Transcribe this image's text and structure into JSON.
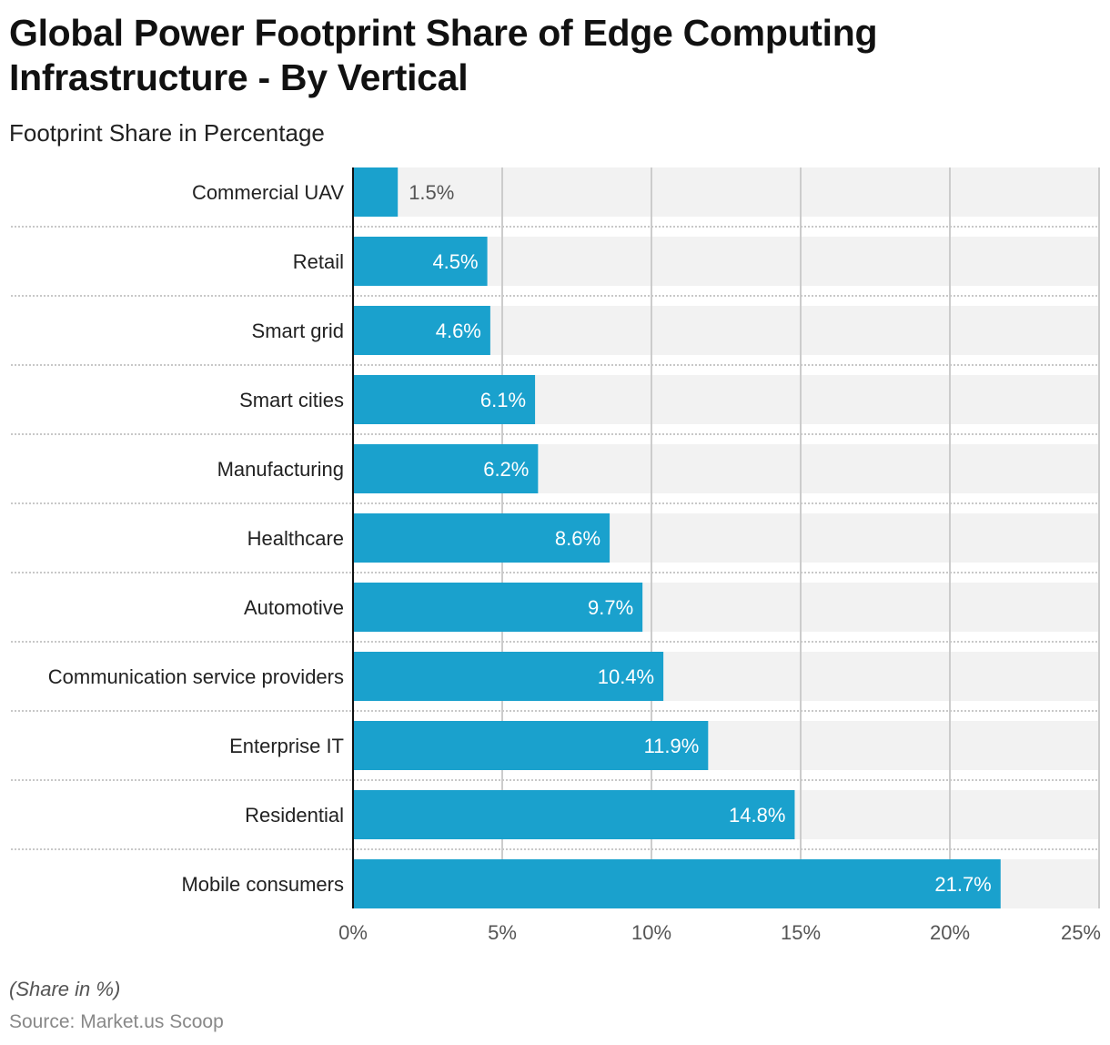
{
  "title": "Global Power Footprint Share of Edge Computing Infrastructure - By Vertical",
  "subtitle": "Footprint Share in Percentage",
  "note": "(Share in %)",
  "source": "Source: Market.us Scoop",
  "colors": {
    "bar": "#1aa1cd",
    "band": "#f2f2f2",
    "grid": "#cccccc",
    "axis": "#111111"
  },
  "chart_data": {
    "type": "bar",
    "orientation": "horizontal",
    "categories": [
      "Commercial UAV",
      "Retail",
      "Smart grid",
      "Smart cities",
      "Manufacturing",
      "Healthcare",
      "Automotive",
      "Communication service providers",
      "Enterprise IT",
      "Residential",
      "Mobile consumers"
    ],
    "values": [
      1.5,
      4.5,
      4.6,
      6.1,
      6.2,
      8.6,
      9.7,
      10.4,
      11.9,
      14.8,
      21.7
    ],
    "data_labels": [
      "1.5%",
      "4.5%",
      "4.6%",
      "6.1%",
      "6.2%",
      "8.6%",
      "9.7%",
      "10.4%",
      "11.9%",
      "14.8%",
      "21.7%"
    ],
    "xlim": [
      0,
      25
    ],
    "xticks": [
      0,
      5,
      10,
      15,
      20,
      25
    ],
    "xtick_labels": [
      "0%",
      "5%",
      "10%",
      "15%",
      "20%",
      "25%"
    ],
    "grid": true,
    "legend": "none"
  }
}
